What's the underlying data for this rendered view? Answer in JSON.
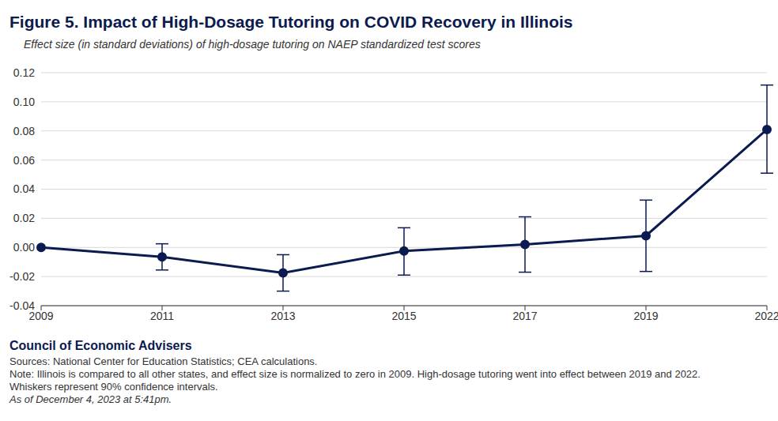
{
  "chart_data": {
    "type": "line",
    "title": "Figure 5. Impact of High-Dosage Tutoring on COVID Recovery in Illinois",
    "subtitle": "Effect size (in standard deviations) of high-dosage tutoring on NAEP standardized test scores",
    "categories": [
      "2009",
      "2011",
      "2013",
      "2015",
      "2017",
      "2019",
      "2022"
    ],
    "values": [
      0.0,
      -0.0065,
      -0.0175,
      -0.0025,
      0.002,
      0.008,
      0.081
    ],
    "error_bars": {
      "low": [
        null,
        -0.0155,
        -0.03,
        -0.019,
        -0.017,
        -0.0165,
        0.051
      ],
      "high": [
        null,
        0.0025,
        -0.005,
        0.0135,
        0.021,
        0.0325,
        0.1115
      ]
    },
    "color": "#0b1a4f",
    "marker": "circle",
    "ylim": [
      -0.04,
      0.12
    ],
    "yticks": [
      {
        "value": -0.04,
        "label": "-0.04"
      },
      {
        "value": -0.02,
        "label": "-0.02"
      },
      {
        "value": 0,
        "label": "0.00"
      },
      {
        "value": 0.02,
        "label": "0.02"
      },
      {
        "value": 0.04,
        "label": "0.04"
      },
      {
        "value": 0.06,
        "label": "0.06"
      },
      {
        "value": 0.08,
        "label": "0.08"
      },
      {
        "value": 0.1,
        "label": "0.10"
      },
      {
        "value": 0.12,
        "label": "0.12"
      }
    ],
    "grid": true,
    "credit": "Council of Economic Advisers",
    "source": "Sources: National Center for Education Statistics; CEA calculations.",
    "note": "Note: Illinois is compared to all other states, and effect size is normalized to zero in 2009. High-dosage tutoring went into effect between 2019 and 2022.",
    "extra_note": "Whiskers represent 90% confidence intervals.",
    "timestamp": "As of December 4, 2023 at 5:41pm."
  }
}
